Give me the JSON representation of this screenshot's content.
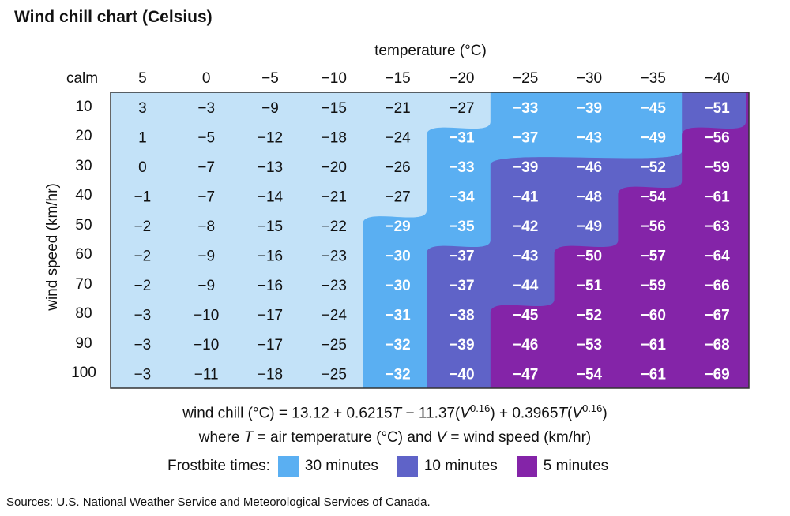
{
  "title": "Wind chill chart (Celsius)",
  "formula_line1": {
    "prefix": "wind chill (°C) = 13.12 + 0.6215",
    "t1": "T",
    "mid1": " − 11.37(",
    "v1": "V",
    "exp1": "0.16",
    "mid2": ") + 0.3965",
    "t2": "T",
    "mid3": "(",
    "v2": "V",
    "exp2": "0.16",
    "suffix": ")"
  },
  "formula_line2": {
    "prefix": "where ",
    "t": "T",
    "mid": " = air temperature (°C) and ",
    "v": "V",
    "suffix": " = wind speed (km/hr)"
  },
  "legend": {
    "label": "Frostbite times:",
    "items": [
      {
        "label": "30 minutes",
        "color": "#5aaff2"
      },
      {
        "label": "10 minutes",
        "color": "#5f63c8"
      },
      {
        "label": "5 minutes",
        "color": "#8424a8"
      }
    ]
  },
  "source": "Sources: U.S. National Weather Service and Meteorological Services of Canada.",
  "chart_data": {
    "type": "heatmap",
    "title": "Wind chill chart (Celsius)",
    "xlabel": "temperature (°C)",
    "ylabel": "wind speed (km/hr)",
    "corner_label": "calm",
    "x": [
      "5",
      "0",
      "−5",
      "−10",
      "−15",
      "−20",
      "−25",
      "−30",
      "−35",
      "−40"
    ],
    "y": [
      "10",
      "20",
      "30",
      "40",
      "50",
      "60",
      "70",
      "80",
      "90",
      "100"
    ],
    "values": [
      [
        "3",
        "−3",
        "−9",
        "−15",
        "−21",
        "−27",
        "−33",
        "−39",
        "−45",
        "−51"
      ],
      [
        "1",
        "−5",
        "−12",
        "−18",
        "−24",
        "−31",
        "−37",
        "−43",
        "−49",
        "−56"
      ],
      [
        "0",
        "−7",
        "−13",
        "−20",
        "−26",
        "−33",
        "−39",
        "−46",
        "−52",
        "−59"
      ],
      [
        "−1",
        "−7",
        "−14",
        "−21",
        "−27",
        "−34",
        "−41",
        "−48",
        "−54",
        "−61"
      ],
      [
        "−2",
        "−8",
        "−15",
        "−22",
        "−29",
        "−35",
        "−42",
        "−49",
        "−56",
        "−63"
      ],
      [
        "−2",
        "−9",
        "−16",
        "−23",
        "−30",
        "−37",
        "−43",
        "−50",
        "−57",
        "−64"
      ],
      [
        "−2",
        "−9",
        "−16",
        "−23",
        "−30",
        "−37",
        "−44",
        "−51",
        "−59",
        "−66"
      ],
      [
        "−3",
        "−10",
        "−17",
        "−24",
        "−31",
        "−38",
        "−45",
        "−52",
        "−60",
        "−67"
      ],
      [
        "−3",
        "−10",
        "−17",
        "−25",
        "−32",
        "−39",
        "−46",
        "−53",
        "−61",
        "−68"
      ],
      [
        "−3",
        "−11",
        "−18",
        "−25",
        "−32",
        "−40",
        "−47",
        "−54",
        "−61",
        "−69"
      ]
    ],
    "zone_start_column": {
      "30_minutes": [
        6,
        5,
        5,
        5,
        4,
        4,
        4,
        4,
        4,
        4
      ],
      "10_minutes": [
        9,
        9,
        6,
        6,
        6,
        5,
        5,
        5,
        5,
        5
      ],
      "5_minutes": [
        10,
        9,
        9,
        8,
        8,
        7,
        7,
        6,
        6,
        6
      ]
    },
    "colors": {
      "no_risk": "#c3e2f8",
      "30_minutes": "#5aaff2",
      "10_minutes": "#5f63c8",
      "5_minutes": "#8424a8",
      "border": "#333333"
    }
  }
}
